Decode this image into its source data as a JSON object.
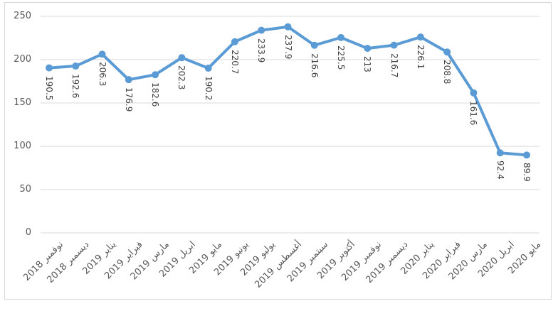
{
  "chart_data": {
    "type": "line",
    "title": "",
    "xlabel": "",
    "ylabel": "",
    "categories": [
      "نوفمبر 2018",
      "ديسمبر 2018",
      "يناير 2019",
      "فبراير 2019",
      "مارس 2019",
      "ابريل 2019",
      "مايو 2019",
      "يونيو 2019",
      "يوليو 2019",
      "أغسطس 2019",
      "سبتمبر 2019",
      "أكتوبر 2019",
      "نوفمبر 2019",
      "ديسمبر 2019",
      "يناير 2020",
      "فبراير 2020",
      "مارس 2020",
      "ابريل 2020",
      "مايو 2020"
    ],
    "series": [
      {
        "name": "",
        "values": [
          190.5,
          192.6,
          206.3,
          176.9,
          182.6,
          202.3,
          190.2,
          220.7,
          233.9,
          237.9,
          216.6,
          225.5,
          213,
          216.7,
          226.1,
          208.8,
          161.6,
          92.4,
          89.9
        ]
      }
    ],
    "data_labels": [
      "190.5",
      "192.6",
      "206.3",
      "176.9",
      "182.6",
      "202.3",
      "190.2",
      "220.7",
      "233.9",
      "237.9",
      "216.6",
      "225.5",
      "213",
      "216.7",
      "226.1",
      "208.8",
      "161.6",
      "92.4",
      "89.9"
    ],
    "ylim": [
      0,
      250
    ],
    "yticks": [
      "0",
      "50",
      "100",
      "150",
      "200",
      "250"
    ],
    "grid": true,
    "legend": "none",
    "data_label_rotation_deg": 90,
    "x_label_rotation_deg": -45,
    "colors": {
      "series": "#5B9BD5",
      "gridline": "#D9D9D9",
      "chart_border": "#D9D9D9",
      "axis_text": "#595959",
      "data_label_text": "#404040",
      "background": "#FFFFFF"
    }
  }
}
